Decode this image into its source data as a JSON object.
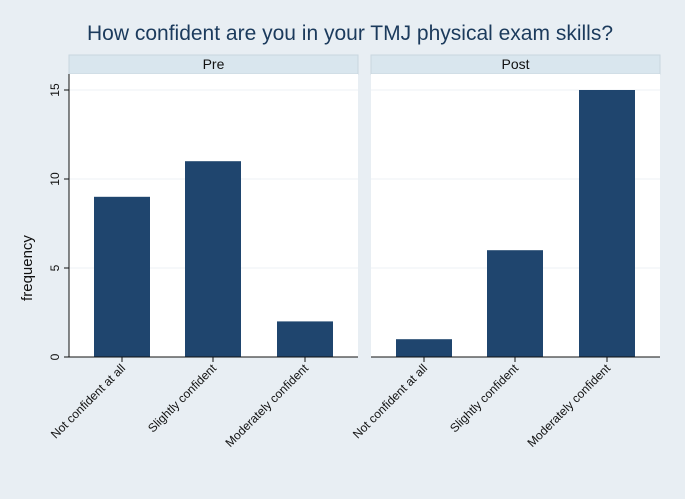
{
  "chart_data": {
    "type": "bar",
    "title": "How confident are you in your TMJ physical exam skills?",
    "ylabel": "frequency",
    "xlabel": "",
    "ylim": [
      0,
      16
    ],
    "yticks": [
      0,
      5,
      10,
      15
    ],
    "grid": true,
    "categories": [
      "Not confident at all",
      "Slightly confident",
      "Moderately confident"
    ],
    "panels": [
      {
        "name": "Pre",
        "values": [
          9,
          11,
          2
        ]
      },
      {
        "name": "Post",
        "values": [
          1,
          6,
          15
        ]
      }
    ],
    "colors": {
      "bar": "#1f456e",
      "background": "#e8eef3",
      "plot": "#ffffff",
      "strip": "#d9e6ee",
      "title": "#1b3a5c",
      "grid": "#eef2f5"
    }
  }
}
